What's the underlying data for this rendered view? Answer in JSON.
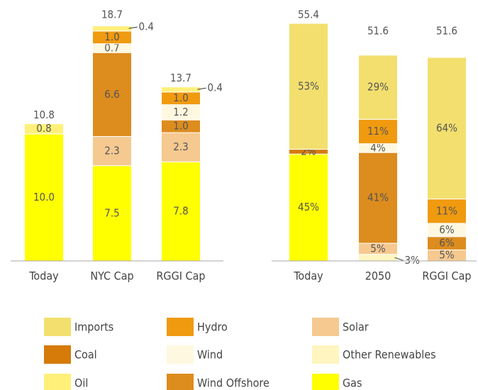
{
  "chart_data": [
    {
      "type": "bar",
      "stacked": true,
      "categories": [
        "Today",
        "NYC Cap",
        "RGGI Cap"
      ],
      "totals": [
        10.8,
        18.7,
        13.7
      ],
      "series": [
        {
          "name": "Gas",
          "color": "#ffff00",
          "values": [
            10.0,
            7.5,
            7.8
          ],
          "value_labels": [
            "10.0",
            "7.5",
            "7.8"
          ]
        },
        {
          "name": "Solar",
          "color": "#f5c990",
          "values": [
            null,
            2.3,
            2.3
          ],
          "value_labels": [
            null,
            "2.3",
            "2.3"
          ]
        },
        {
          "name": "Wind Offshore",
          "color": "#dd8c1e",
          "values": [
            null,
            6.6,
            1.0
          ],
          "value_labels": [
            null,
            "6.6",
            "1.0"
          ]
        },
        {
          "name": "Wind",
          "color": "#fff8e0",
          "values": [
            null,
            0.7,
            1.2
          ],
          "value_labels": [
            null,
            "0.7",
            "1.2"
          ]
        },
        {
          "name": "Hydro",
          "color": "#f09a10",
          "values": [
            null,
            1.0,
            1.0
          ],
          "value_labels": [
            null,
            "1.0",
            "1.0"
          ]
        },
        {
          "name": "Oil",
          "color": "#fff07a",
          "values": [
            0.8,
            0.4,
            0.4
          ],
          "value_labels": [
            "0.8",
            "0.4",
            "0.4"
          ]
        }
      ]
    },
    {
      "type": "bar",
      "stacked": "percent",
      "categories": [
        "Today",
        "2050",
        "RGGI Cap"
      ],
      "totals": [
        55.4,
        51.6,
        51.6
      ],
      "series": [
        {
          "name": "Other Renewables",
          "color": "#fff5c0",
          "values": [
            null,
            3,
            null
          ],
          "value_labels": [
            null,
            "3%",
            null
          ]
        },
        {
          "name": "Gas",
          "color": "#ffff00",
          "values": [
            45,
            null,
            null
          ],
          "value_labels": [
            "45%",
            null,
            null
          ]
        },
        {
          "name": "Solar",
          "color": "#f5c990",
          "values": [
            null,
            5,
            5
          ],
          "value_labels": [
            null,
            "5%",
            "5%"
          ]
        },
        {
          "name": "Coal",
          "color": "#d67a0a",
          "values": [
            2,
            null,
            null
          ],
          "value_labels": [
            "2%",
            null,
            null
          ]
        },
        {
          "name": "Wind Offshore",
          "color": "#dd8c1e",
          "values": [
            null,
            41,
            6
          ],
          "value_labels": [
            null,
            "41%",
            "6%"
          ]
        },
        {
          "name": "Wind",
          "color": "#fff8e0",
          "values": [
            null,
            4,
            6
          ],
          "value_labels": [
            null,
            "4%",
            "6%"
          ]
        },
        {
          "name": "Hydro",
          "color": "#f09a10",
          "values": [
            null,
            11,
            11
          ],
          "value_labels": [
            null,
            "11%",
            "11%"
          ]
        },
        {
          "name": "Imports",
          "color": "#f2df6e",
          "values": [
            53,
            29,
            64
          ],
          "value_labels": [
            "53%",
            "29%",
            "64%"
          ]
        }
      ]
    }
  ],
  "legend": [
    {
      "name": "Imports",
      "color": "#f2df6e"
    },
    {
      "name": "Hydro",
      "color": "#f09a10"
    },
    {
      "name": "Solar",
      "color": "#f5c990"
    },
    {
      "name": "Coal",
      "color": "#d67a0a"
    },
    {
      "name": "Wind",
      "color": "#fff8e0"
    },
    {
      "name": "Other Renewables",
      "color": "#fff5c0"
    },
    {
      "name": "Oil",
      "color": "#fff07a"
    },
    {
      "name": "Wind Offshore",
      "color": "#dd8c1e"
    },
    {
      "name": "Gas",
      "color": "#ffff00"
    }
  ]
}
